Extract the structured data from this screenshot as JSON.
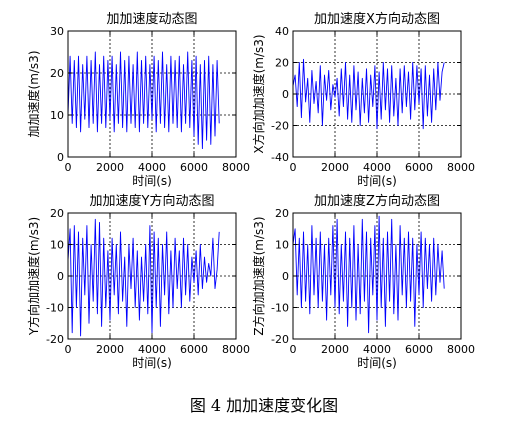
{
  "caption": "图 4  加加速度变化图",
  "chart_data": [
    {
      "type": "line",
      "title": "加加速度动态图",
      "xlabel": "时间(s)",
      "ylabel": "加加速度(m/s3)",
      "xlim": [
        0,
        8000
      ],
      "ylim": [
        0,
        30
      ],
      "xticks": [
        0,
        2000,
        4000,
        6000,
        8000
      ],
      "yticks": [
        0,
        10,
        20,
        30
      ],
      "grid": true,
      "color": "#0000ff",
      "series": [
        {
          "x": [
            0,
            100,
            200,
            300,
            400,
            500,
            600,
            700,
            800,
            900,
            1000,
            1100,
            1200,
            1300,
            1400,
            1500,
            1600,
            1700,
            1800,
            1900,
            2000,
            2100,
            2200,
            2300,
            2400,
            2500,
            2600,
            2700,
            2800,
            2900,
            3000,
            3100,
            3200,
            3300,
            3400,
            3500,
            3600,
            3700,
            3800,
            3900,
            4000,
            4100,
            4200,
            4300,
            4400,
            4500,
            4600,
            4700,
            4800,
            4900,
            5000,
            5100,
            5200,
            5300,
            5400,
            5500,
            5600,
            5700,
            5800,
            5900,
            6000,
            6100,
            6200,
            6300,
            6400,
            6500,
            6600,
            6700,
            6800,
            6900,
            7000,
            7100,
            7200
          ],
          "y": [
            10,
            24,
            8,
            23,
            7,
            24,
            6,
            22,
            9,
            24,
            7,
            23,
            8,
            25,
            6,
            22,
            8,
            24,
            7,
            23,
            9,
            24,
            6,
            22,
            8,
            25,
            7,
            23,
            6,
            24,
            8,
            22,
            7,
            25,
            6,
            23,
            8,
            24,
            7,
            22,
            9,
            24,
            6,
            23,
            8,
            25,
            7,
            22,
            6,
            24,
            8,
            23,
            7,
            24,
            6,
            22,
            8,
            25,
            7,
            23,
            5,
            24,
            3,
            22,
            2,
            23,
            4,
            24,
            3,
            22,
            5,
            23,
            8
          ]
        }
      ]
    },
    {
      "type": "line",
      "title": "加加速度X方向动态图",
      "xlabel": "时间(s)",
      "ylabel": "X方向加加速度(m/s3)",
      "xlim": [
        0,
        8000
      ],
      "ylim": [
        -40,
        40
      ],
      "xticks": [
        0,
        2000,
        4000,
        6000,
        8000
      ],
      "yticks": [
        -40,
        -20,
        0,
        20,
        40
      ],
      "grid": true,
      "color": "#0000ff",
      "series": [
        {
          "x": [
            0,
            100,
            200,
            300,
            400,
            500,
            600,
            700,
            800,
            900,
            1000,
            1100,
            1200,
            1300,
            1400,
            1500,
            1600,
            1700,
            1800,
            1900,
            2000,
            2100,
            2200,
            2300,
            2400,
            2500,
            2600,
            2700,
            2800,
            2900,
            3000,
            3100,
            3200,
            3300,
            3400,
            3500,
            3600,
            3700,
            3800,
            3900,
            4000,
            4100,
            4200,
            4300,
            4400,
            4500,
            4600,
            4700,
            4800,
            4900,
            5000,
            5100,
            5200,
            5300,
            5400,
            5500,
            5600,
            5700,
            5800,
            5900,
            6000,
            6100,
            6200,
            6300,
            6400,
            6500,
            6600,
            6700,
            6800,
            6900,
            7000,
            7100,
            7200
          ],
          "y": [
            5,
            12,
            -8,
            20,
            -15,
            22,
            -5,
            10,
            -18,
            15,
            -6,
            8,
            -12,
            18,
            -20,
            12,
            -4,
            15,
            -10,
            6,
            -2,
            10,
            -14,
            16,
            -8,
            20,
            -16,
            12,
            -18,
            18,
            -10,
            14,
            -20,
            10,
            -12,
            16,
            -18,
            12,
            -8,
            18,
            -22,
            14,
            -16,
            20,
            -10,
            16,
            -18,
            18,
            -14,
            10,
            -20,
            16,
            -12,
            18,
            -8,
            14,
            -16,
            20,
            -10,
            18,
            -6,
            16,
            -22,
            18,
            -14,
            12,
            -18,
            16,
            -10,
            20,
            -4,
            14,
            20
          ]
        }
      ]
    },
    {
      "type": "line",
      "title": "加加速度Y方向动态图",
      "xlabel": "时间(s)",
      "ylabel": "Y方向加加速度(m/s3)",
      "xlim": [
        0,
        8000
      ],
      "ylim": [
        -20,
        20
      ],
      "xticks": [
        0,
        2000,
        4000,
        6000,
        8000
      ],
      "yticks": [
        -20,
        -10,
        0,
        10,
        20
      ],
      "grid": true,
      "color": "#0000ff",
      "series": [
        {
          "x": [
            0,
            100,
            200,
            300,
            400,
            500,
            600,
            700,
            800,
            900,
            1000,
            1100,
            1200,
            1300,
            1400,
            1500,
            1600,
            1700,
            1800,
            1900,
            2000,
            2100,
            2200,
            2300,
            2400,
            2500,
            2600,
            2700,
            2800,
            2900,
            3000,
            3100,
            3200,
            3300,
            3400,
            3500,
            3600,
            3700,
            3800,
            3900,
            4000,
            4100,
            4200,
            4300,
            4400,
            4500,
            4600,
            4700,
            4800,
            4900,
            5000,
            5100,
            5200,
            5300,
            5400,
            5500,
            5600,
            5700,
            5800,
            5900,
            6000,
            6100,
            6200,
            6300,
            6400,
            6500,
            6600,
            6700,
            6800,
            6900,
            7000,
            7100,
            7200
          ],
          "y": [
            5,
            15,
            -18,
            16,
            -10,
            14,
            -19,
            12,
            -6,
            16,
            -15,
            10,
            -8,
            18,
            -12,
            17,
            -16,
            12,
            -10,
            8,
            -14,
            12,
            -6,
            10,
            -12,
            14,
            -8,
            6,
            -16,
            10,
            -4,
            12,
            -10,
            8,
            -14,
            6,
            -8,
            10,
            -12,
            16,
            -18,
            14,
            -10,
            12,
            -16,
            10,
            -6,
            14,
            -12,
            8,
            -10,
            12,
            -4,
            8,
            -10,
            12,
            -6,
            10,
            -8,
            6,
            -2,
            8,
            -6,
            10,
            -4,
            6,
            -2,
            4,
            0,
            12,
            -4,
            2,
            14
          ]
        }
      ]
    },
    {
      "type": "line",
      "title": "加加速度Z方向动态图",
      "xlabel": "时间(s)",
      "ylabel": "Z方向加加速度(m/s3)",
      "xlim": [
        0,
        8000
      ],
      "ylim": [
        -20,
        20
      ],
      "xticks": [
        0,
        2000,
        4000,
        6000,
        8000
      ],
      "yticks": [
        -20,
        -10,
        0,
        10,
        20
      ],
      "grid": true,
      "color": "#0000ff",
      "series": [
        {
          "x": [
            0,
            100,
            200,
            300,
            400,
            500,
            600,
            700,
            800,
            900,
            1000,
            1100,
            1200,
            1300,
            1400,
            1500,
            1600,
            1700,
            1800,
            1900,
            2000,
            2100,
            2200,
            2300,
            2400,
            2500,
            2600,
            2700,
            2800,
            2900,
            3000,
            3100,
            3200,
            3300,
            3400,
            3500,
            3600,
            3700,
            3800,
            3900,
            4000,
            4100,
            4200,
            4300,
            4400,
            4500,
            4600,
            4700,
            4800,
            4900,
            5000,
            5100,
            5200,
            5300,
            5400,
            5500,
            5600,
            5700,
            5800,
            5900,
            6000,
            6100,
            6200,
            6300,
            6400,
            6500,
            6600,
            6700,
            6800,
            6900,
            7000,
            7100,
            7200
          ],
          "y": [
            10,
            15,
            -6,
            12,
            -10,
            14,
            -8,
            10,
            -12,
            16,
            -6,
            12,
            -10,
            14,
            -8,
            10,
            -14,
            12,
            -6,
            16,
            -10,
            18,
            -12,
            10,
            -8,
            14,
            -16,
            12,
            -10,
            16,
            -14,
            10,
            -12,
            18,
            -8,
            14,
            -18,
            12,
            -6,
            16,
            -14,
            19,
            -10,
            12,
            -16,
            14,
            -8,
            18,
            -12,
            10,
            -14,
            16,
            -6,
            12,
            -10,
            14,
            -8,
            12,
            -16,
            10,
            -6,
            14,
            -10,
            12,
            -4,
            10,
            -8,
            12,
            -6,
            10,
            -2,
            8,
            -4
          ]
        }
      ]
    }
  ]
}
